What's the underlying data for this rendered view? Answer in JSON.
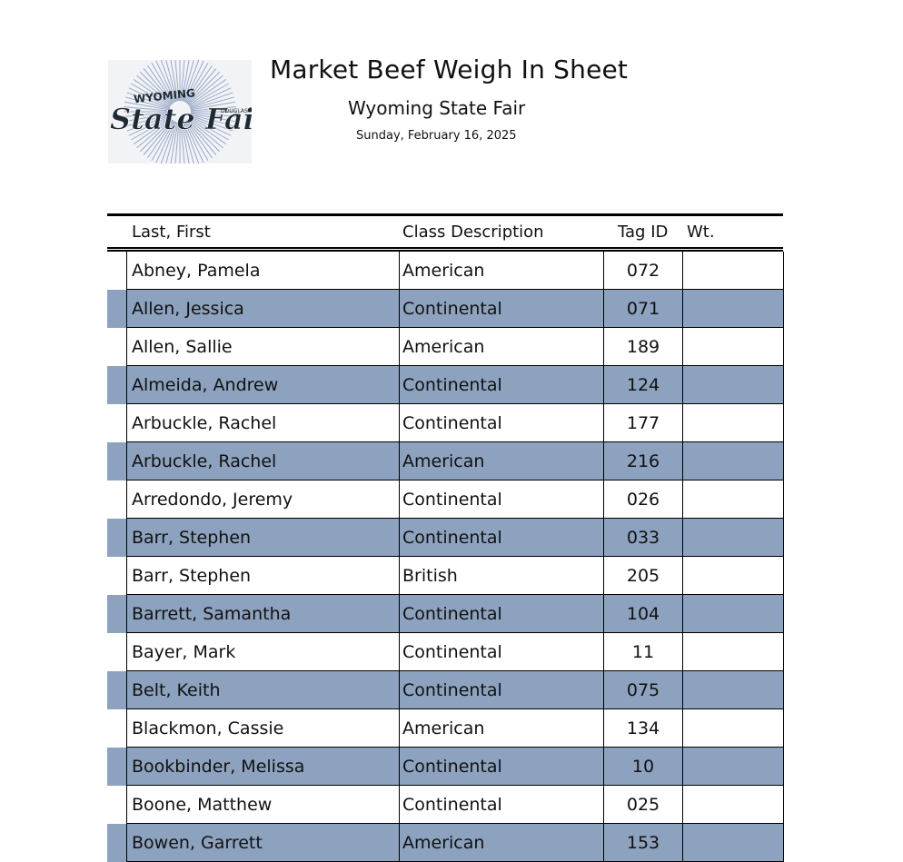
{
  "header": {
    "title": "Market Beef Weigh In Sheet",
    "subtitle": "Wyoming State Fair",
    "date": "Sunday, February 16, 2025",
    "logo": {
      "top_text": "WYOMING",
      "main_text": "State Fair",
      "side_text": "DOUGLAS"
    }
  },
  "table": {
    "columns": {
      "name": "Last, First",
      "class": "Class Description",
      "tag": "Tag ID",
      "weight": "Wt."
    },
    "rows": [
      {
        "name": "Abney, Pamela",
        "class": "American",
        "tag": "072",
        "weight": ""
      },
      {
        "name": "Allen, Jessica",
        "class": "Continental",
        "tag": "071",
        "weight": ""
      },
      {
        "name": "Allen, Sallie",
        "class": "American",
        "tag": "189",
        "weight": ""
      },
      {
        "name": "Almeida, Andrew",
        "class": "Continental",
        "tag": "124",
        "weight": ""
      },
      {
        "name": "Arbuckle, Rachel",
        "class": "Continental",
        "tag": "177",
        "weight": ""
      },
      {
        "name": "Arbuckle, Rachel",
        "class": "American",
        "tag": "216",
        "weight": ""
      },
      {
        "name": "Arredondo, Jeremy",
        "class": "Continental",
        "tag": "026",
        "weight": ""
      },
      {
        "name": "Barr, Stephen",
        "class": "Continental",
        "tag": "033",
        "weight": ""
      },
      {
        "name": "Barr, Stephen",
        "class": "British",
        "tag": "205",
        "weight": ""
      },
      {
        "name": "Barrett, Samantha",
        "class": "Continental",
        "tag": "104",
        "weight": ""
      },
      {
        "name": "Bayer, Mark",
        "class": "Continental",
        "tag": "11",
        "weight": ""
      },
      {
        "name": "Belt, Keith",
        "class": "Continental",
        "tag": "075",
        "weight": ""
      },
      {
        "name": "Blackmon, Cassie",
        "class": "American",
        "tag": "134",
        "weight": ""
      },
      {
        "name": "Bookbinder, Melissa",
        "class": "Continental",
        "tag": "10",
        "weight": ""
      },
      {
        "name": "Boone, Matthew",
        "class": "Continental",
        "tag": "025",
        "weight": ""
      },
      {
        "name": "Bowen, Garrett",
        "class": "American",
        "tag": "153",
        "weight": ""
      }
    ]
  }
}
